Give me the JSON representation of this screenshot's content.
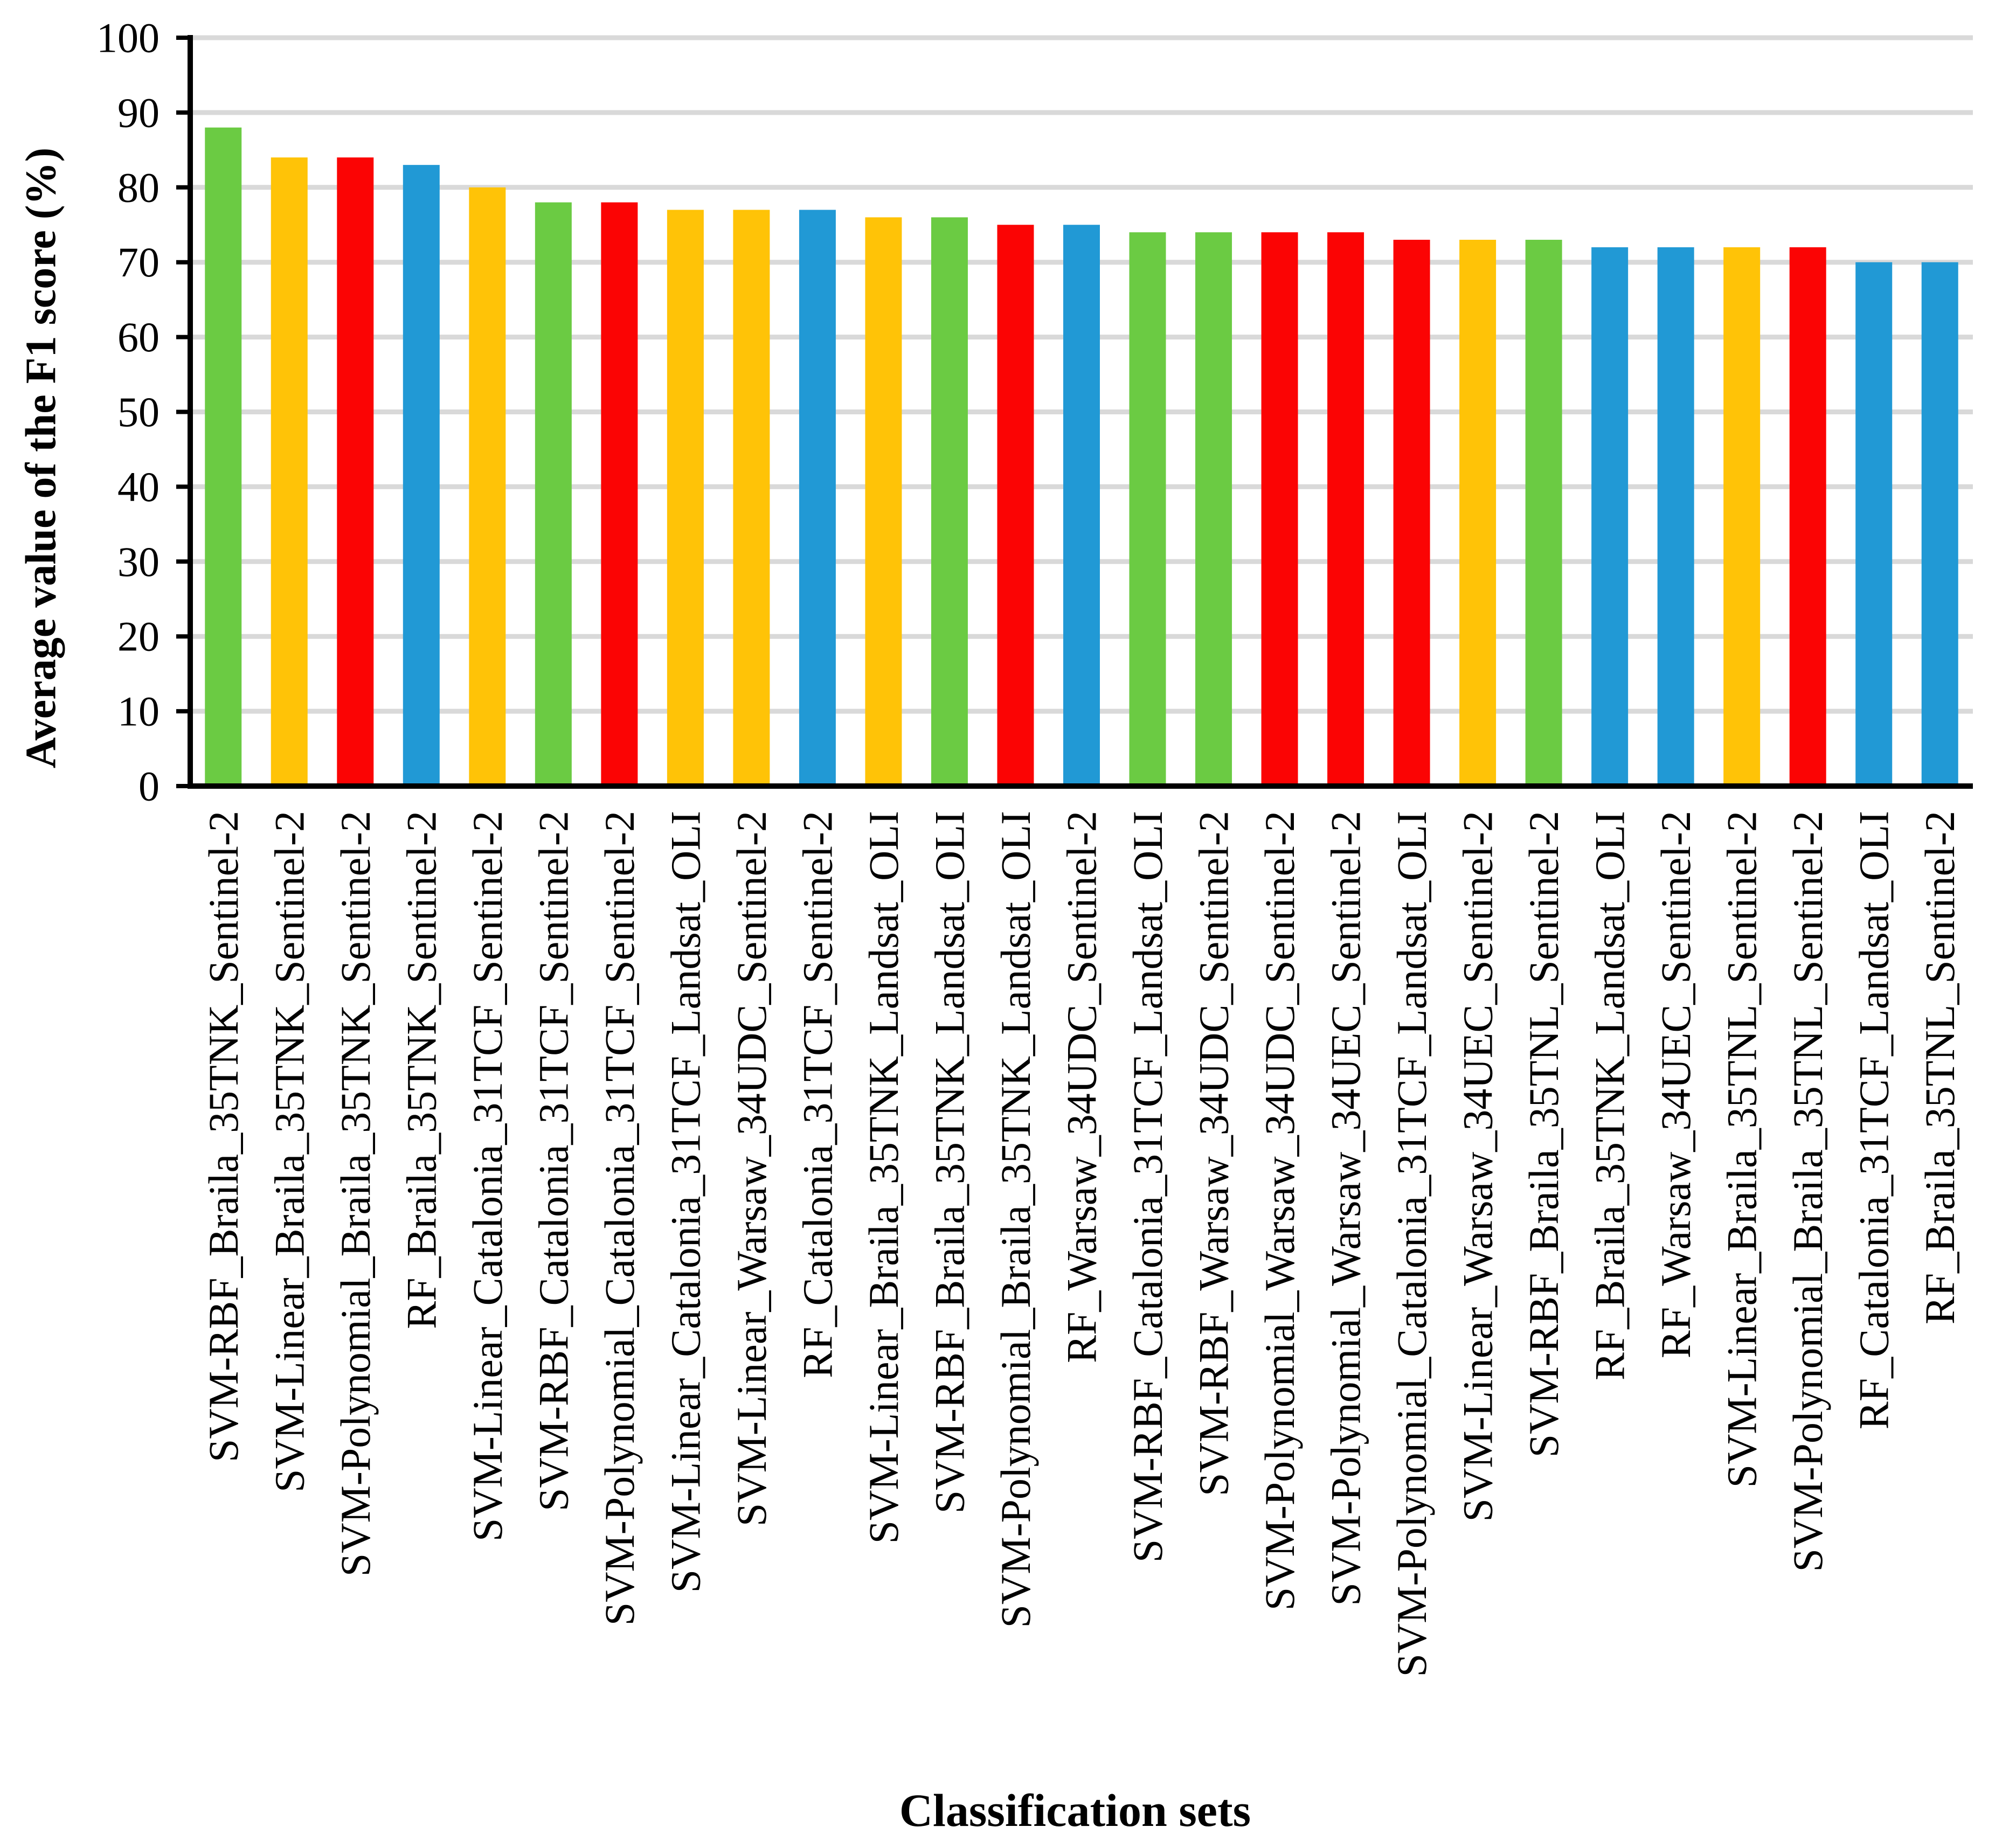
{
  "chart_data": {
    "type": "bar",
    "title": "",
    "xlabel": "Classification sets",
    "ylabel": "Average value of the F1 score (%)",
    "ylim": [
      0,
      100
    ],
    "ytick_interval": 10,
    "ytick_labels": [
      "0",
      "10",
      "20",
      "30",
      "40",
      "50",
      "60",
      "70",
      "80",
      "90",
      "100"
    ],
    "grid": true,
    "legend": "none",
    "gridline_color": "#D9D9D9",
    "axis_color": "#000000",
    "colors_by_classifier": {
      "SVM-RBF": "#6BCB43",
      "SVM-Linear": "#FFC307",
      "SVM-Polynomial": "#FB0404",
      "RF": "#2199D5"
    },
    "categories": [
      "SVM-RBF_Braila_35TNK_Sentinel-2",
      "SVM-Linear_Braila_35TNK_Sentinel-2",
      "SVM-Polynomial_Braila_35TNK_Sentinel-2",
      "RF_Braila_35TNK_Sentinel-2",
      "SVM-Linear_Catalonia_31TCF_Sentinel-2",
      "SVM-RBF_Catalonia_31TCF_Sentinel-2",
      "SVM-Polynomial_Catalonia_31TCF_Sentinel-2",
      "SVM-Linear_Catalonia_31TCF_Landsat_OLI",
      "SVM-Linear_Warsaw_34UDC_Sentinel-2",
      "RF_Catalonia_31TCF_Sentinel-2",
      "SVM-Linear_Braila_35TNK_Landsat_OLI",
      "SVM-RBF_Braila_35TNK_Landsat_OLI",
      "SVM-Polynomial_Braila_35TNK_Landsat_OLI",
      "RF_Warsaw_34UDC_Sentinel-2",
      "SVM-RBF_Catalonia_31TCF_Landsat_OLI",
      "SVM-RBF_Warsaw_34UDC_Sentinel-2",
      "SVM-Polynomial_Warsaw_34UDC_Sentinel-2",
      "SVM-Polynomial_Warsaw_34UEC_Sentinel-2",
      "SVM-Polynomial_Catalonia_31TCF_Landsat_OLI",
      "SVM-Linear_Warsaw_34UEC_Sentinel-2",
      "SVM-RBF_Braila_35TNL_Sentinel-2",
      "RF_Braila_35TNK_Landsat_OLI",
      "RF_Warsaw_34UEC_Sentinel-2",
      "SVM-Linear_Braila_35TNL_Sentinel-2",
      "SVM-Polynomial_Braila_35TNL_Sentinel-2",
      "RF_Catalonia_31TCF_Landsat_OLI",
      "RF_Braila_35TNL_Sentinel-2"
    ],
    "values": [
      88,
      84,
      84,
      83,
      80,
      78,
      78,
      77,
      77,
      77,
      76,
      76,
      75,
      75,
      74,
      74,
      74,
      74,
      73,
      73,
      73,
      72,
      72,
      72,
      72,
      70,
      70
    ]
  }
}
